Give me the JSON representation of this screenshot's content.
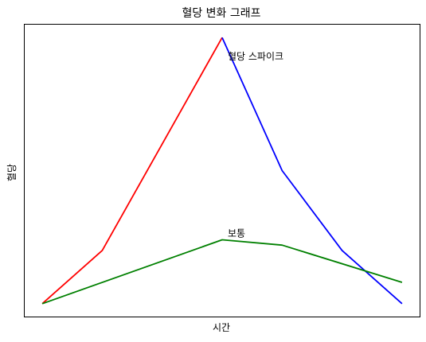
{
  "chart_data": {
    "type": "line",
    "title": "혈당 변화 그래프",
    "xlabel": "시간",
    "ylabel": "혈당",
    "x_ticks_visible": false,
    "y_ticks_visible": false,
    "grid": false,
    "xlim": [
      -0.3,
      6.3
    ],
    "ylim": [
      -0.25,
      5.25
    ],
    "series": [
      {
        "color": "#ff0000",
        "x": [
          0,
          1,
          3
        ],
        "y": [
          0,
          1,
          5
        ]
      },
      {
        "color": "#0000ff",
        "x": [
          3,
          4,
          5,
          6
        ],
        "y": [
          5,
          2.5,
          1,
          0
        ]
      },
      {
        "color": "#008000",
        "x": [
          0,
          3,
          4,
          6
        ],
        "y": [
          0,
          1.2,
          1.1,
          0.4
        ]
      }
    ],
    "annotations": [
      {
        "text": "혈당 스파이크",
        "x": 3,
        "y": 5
      },
      {
        "text": "보통",
        "x": 3,
        "y": 1.2
      }
    ]
  }
}
